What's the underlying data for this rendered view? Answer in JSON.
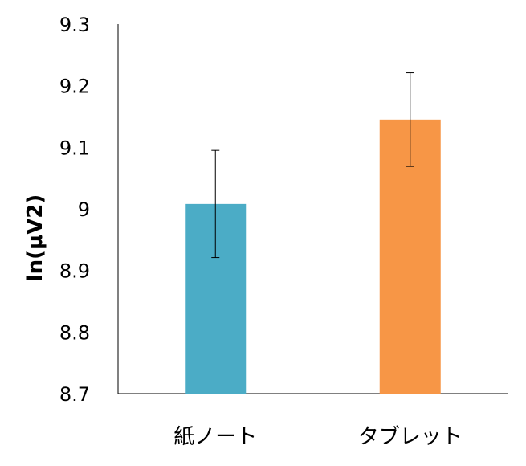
{
  "chart_data": {
    "type": "bar",
    "title": "",
    "xlabel": "",
    "ylabel": "ln(μV2)",
    "categories": [
      "紙ノート",
      "タブレット"
    ],
    "series": [
      {
        "values": [
          9.008,
          9.145
        ],
        "error": [
          0.087,
          0.076
        ],
        "colors": [
          "#4BACC6",
          "#F79646"
        ]
      }
    ],
    "ylim": [
      8.7,
      9.3
    ],
    "yticks": [
      {
        "value": 9.3,
        "label": "9.3"
      },
      {
        "value": 9.2,
        "label": "9.2"
      },
      {
        "value": 9.1,
        "label": "9.1"
      },
      {
        "value": 9.0,
        "label": "9"
      },
      {
        "value": 8.9,
        "label": "8.9"
      },
      {
        "value": 8.8,
        "label": "8.8"
      },
      {
        "value": 8.7,
        "label": "8.7"
      }
    ],
    "grid": false,
    "legend": "none"
  }
}
